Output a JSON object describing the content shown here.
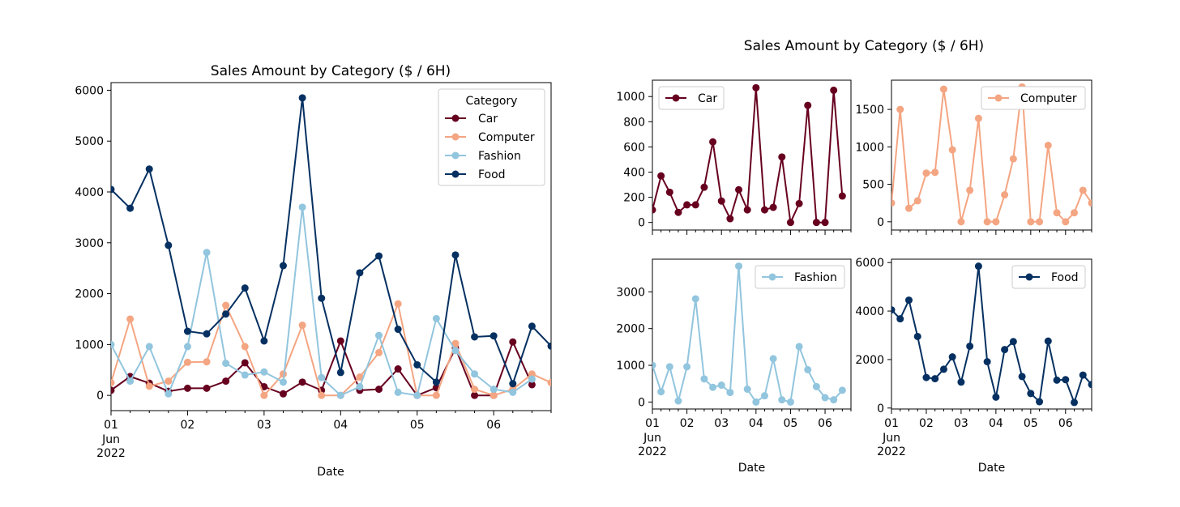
{
  "colors": {
    "Car": "#67001f",
    "Computer": "#f4a582",
    "Fashion": "#92c5de",
    "Food": "#053061"
  },
  "chart_data": [
    {
      "type": "line",
      "title": "Sales Amount by Category ($ / 6H)",
      "xlabel": "Date",
      "ylabel": "",
      "x_ticks": [
        "01",
        "02",
        "03",
        "04",
        "05",
        "06"
      ],
      "x_tick_sub": [
        "Jun",
        "2022"
      ],
      "ylim": [
        -300,
        6150
      ],
      "y_ticks": [
        "0",
        "1000",
        "2000",
        "3000",
        "4000",
        "5000",
        "6000"
      ],
      "legend": {
        "title": "Category",
        "position": "top-right"
      },
      "series": [
        {
          "name": "Car",
          "values": [
            100,
            370,
            240,
            80,
            140,
            140,
            280,
            640,
            170,
            30,
            260,
            100,
            1070,
            100,
            120,
            520,
            0,
            150,
            930,
            0,
            0,
            1050,
            210
          ]
        },
        {
          "name": "Computer",
          "values": [
            250,
            1500,
            180,
            280,
            650,
            660,
            1770,
            960,
            0,
            420,
            1380,
            0,
            0,
            360,
            840,
            1800,
            0,
            0,
            1020,
            120,
            0,
            120,
            420,
            250
          ]
        },
        {
          "name": "Fashion",
          "values": [
            1000,
            280,
            960,
            30,
            960,
            2810,
            630,
            400,
            460,
            260,
            3700,
            350,
            0,
            170,
            1180,
            60,
            0,
            1510,
            880,
            420,
            120,
            60,
            320
          ]
        },
        {
          "name": "Food",
          "values": [
            4050,
            3680,
            4450,
            2950,
            1260,
            1210,
            1600,
            2110,
            1070,
            2550,
            5850,
            1910,
            450,
            2410,
            2740,
            1300,
            600,
            260,
            2760,
            1150,
            1170,
            230,
            1360,
            970
          ]
        }
      ]
    },
    {
      "title": "Sales Amount by Category ($ / 6H)",
      "panels": [
        {
          "name": "Car",
          "type": "line",
          "ylim": [
            -60,
            1130
          ],
          "y_ticks": [
            "0",
            "200",
            "400",
            "600",
            "800",
            "1000"
          ],
          "legend": "top-left",
          "xlabel": "",
          "x_ticks": []
        },
        {
          "name": "Computer",
          "type": "line",
          "ylim": [
            -110,
            1890
          ],
          "y_ticks": [
            "0",
            "500",
            "1000",
            "1500"
          ],
          "legend": "top-right",
          "xlabel": "",
          "x_ticks": []
        },
        {
          "name": "Fashion",
          "type": "line",
          "ylim": [
            -190,
            3890
          ],
          "y_ticks": [
            "0",
            "1000",
            "2000",
            "3000"
          ],
          "legend": "top-right",
          "xlabel": "Date",
          "x_ticks": [
            "01",
            "02",
            "03",
            "04",
            "05",
            "06"
          ],
          "x_tick_sub": [
            "Jun",
            "2022"
          ]
        },
        {
          "name": "Food",
          "type": "line",
          "ylim": [
            -40,
            6140
          ],
          "y_ticks": [
            "0",
            "2000",
            "4000",
            "6000"
          ],
          "legend": "top-right",
          "xlabel": "Date",
          "x_ticks": [
            "01",
            "02",
            "03",
            "04",
            "05",
            "06"
          ],
          "x_tick_sub": [
            "Jun",
            "2022"
          ]
        }
      ]
    }
  ]
}
